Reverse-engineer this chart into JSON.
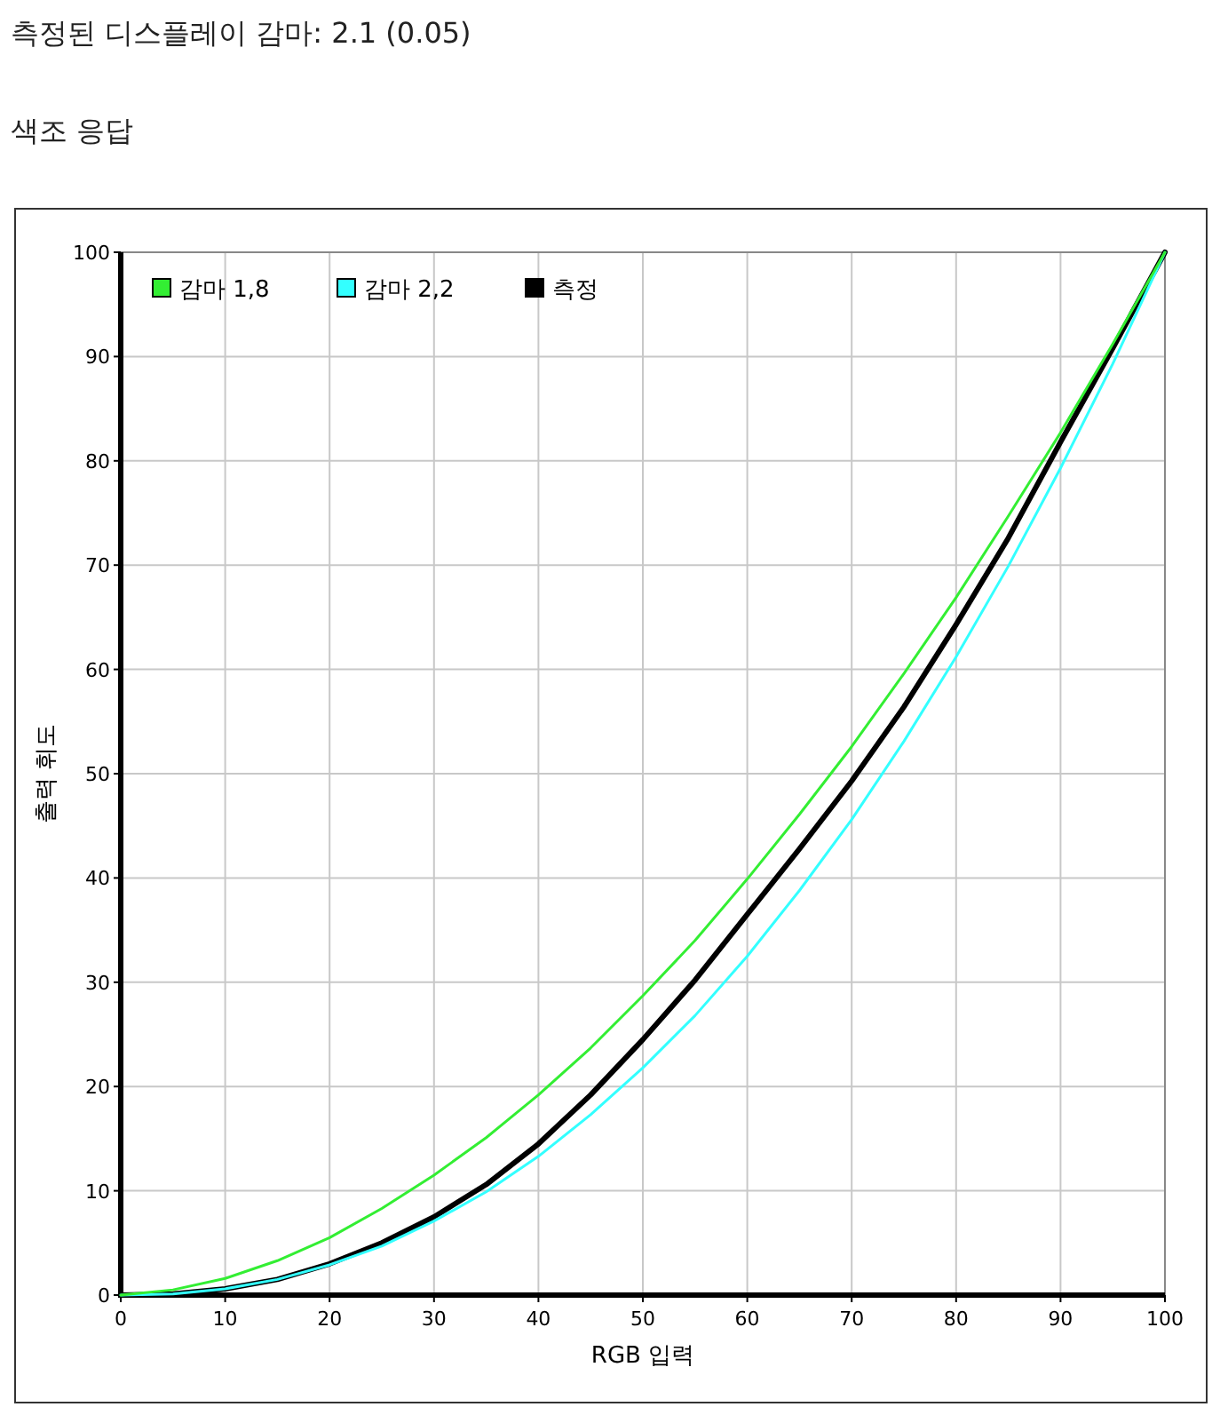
{
  "chart_data": {
    "type": "line",
    "title": "측정된 디스플레이 감마: 2.1 (0.05)",
    "subtitle": "색조 응답",
    "xlabel": "RGB 입력",
    "ylabel": "출력 휘도",
    "x": [
      0,
      5,
      10,
      15,
      20,
      25,
      30,
      35,
      40,
      45,
      50,
      55,
      60,
      65,
      70,
      75,
      80,
      85,
      90,
      95,
      100
    ],
    "series": [
      {
        "name": "감마 1,8",
        "color": "#33ee33",
        "values": [
          0,
          0.5,
          1.6,
          3.3,
          5.5,
          8.3,
          11.5,
          15.1,
          19.2,
          23.7,
          28.7,
          34.0,
          39.9,
          46.1,
          52.6,
          59.6,
          66.9,
          74.7,
          82.7,
          91.2,
          100
        ]
      },
      {
        "name": "감마 2,2",
        "color": "#33ffff",
        "values": [
          0,
          0.1,
          0.6,
          1.5,
          2.9,
          4.7,
          7.1,
          9.9,
          13.3,
          17.3,
          21.8,
          26.8,
          32.5,
          38.8,
          45.6,
          53.1,
          61.2,
          69.9,
          79.3,
          89.3,
          100
        ]
      },
      {
        "name": "측정",
        "color": "#000000",
        "values": [
          0,
          0.1,
          0.6,
          1.5,
          3.0,
          5.0,
          7.5,
          10.6,
          14.5,
          19.2,
          24.5,
          30.2,
          36.5,
          42.8,
          49.3,
          56.4,
          64.3,
          72.6,
          81.8,
          90.8,
          100
        ]
      }
    ],
    "xlim": [
      0,
      100
    ],
    "ylim": [
      0,
      100
    ],
    "xticks": [
      0,
      10,
      20,
      30,
      40,
      50,
      60,
      70,
      80,
      90,
      100
    ],
    "yticks": [
      0,
      10,
      20,
      30,
      40,
      50,
      60,
      70,
      80,
      90,
      100
    ],
    "grid": true,
    "legend": "top left",
    "marker": "none",
    "line_style": "solid"
  }
}
